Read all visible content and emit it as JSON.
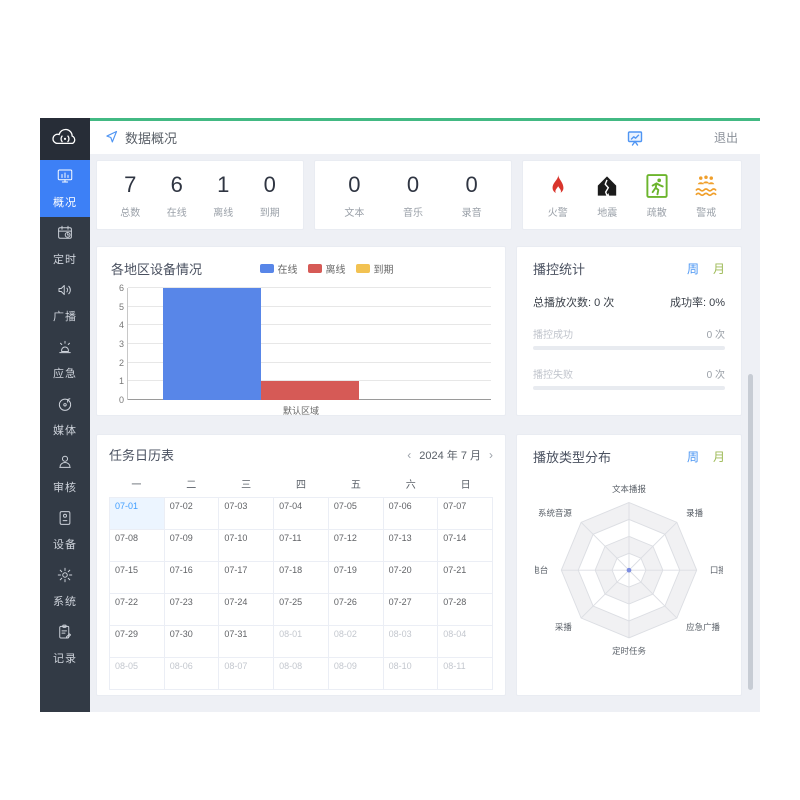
{
  "app": {
    "breadcrumb": "数据概况",
    "logout_label": "退出"
  },
  "colors": {
    "accent_green": "#42b983",
    "active_blue": "#3d80f6",
    "week_blue": "#4b96f3",
    "month_green": "#9dba56",
    "today_blue": "#409eff"
  },
  "sidebar": {
    "items": [
      {
        "label": "概况",
        "icon": "overview",
        "active": true
      },
      {
        "label": "定时",
        "icon": "timer",
        "active": false
      },
      {
        "label": "广播",
        "icon": "broadcast",
        "active": false
      },
      {
        "label": "应急",
        "icon": "emergency",
        "active": false
      },
      {
        "label": "媒体",
        "icon": "media",
        "active": false
      },
      {
        "label": "审核",
        "icon": "audit",
        "active": false
      },
      {
        "label": "设备",
        "icon": "device",
        "active": false
      },
      {
        "label": "系统",
        "icon": "system",
        "active": false
      },
      {
        "label": "记录",
        "icon": "records",
        "active": false
      }
    ]
  },
  "device_stats": [
    {
      "value": "7",
      "label": "总数"
    },
    {
      "value": "6",
      "label": "在线"
    },
    {
      "value": "1",
      "label": "离线"
    },
    {
      "value": "0",
      "label": "到期"
    }
  ],
  "media_stats": [
    {
      "value": "0",
      "label": "文本"
    },
    {
      "value": "0",
      "label": "音乐"
    },
    {
      "value": "0",
      "label": "录音"
    }
  ],
  "alerts": [
    {
      "label": "火警",
      "icon": "fire",
      "color": "#d9352c"
    },
    {
      "label": "地震",
      "icon": "earthquake",
      "color": "#1b1b1b"
    },
    {
      "label": "疏散",
      "icon": "evacuation",
      "color": "#6cb52d"
    },
    {
      "label": "警戒",
      "icon": "flood",
      "color": "#f09f2b"
    }
  ],
  "chart_data": [
    {
      "type": "bar",
      "title": "各地区设备情况",
      "categories": [
        "默认区域"
      ],
      "series": [
        {
          "name": "在线",
          "color": "#5886e8",
          "values": [
            6
          ]
        },
        {
          "name": "离线",
          "color": "#d65a56",
          "values": [
            1
          ]
        },
        {
          "name": "到期",
          "color": "#f2c252",
          "values": [
            0
          ]
        }
      ],
      "ylim": [
        0,
        6
      ],
      "yticks": [
        0,
        1,
        2,
        3,
        4,
        5,
        6
      ],
      "grid": true,
      "legend_position": "top"
    },
    {
      "type": "radar",
      "title": "播放类型分布",
      "axes": [
        "文本播报",
        "录播",
        "口播",
        "应急广播",
        "定时任务",
        "采播",
        "FM电台",
        "系统音源"
      ],
      "series": [
        {
          "name": "当前",
          "values": [
            0,
            0,
            0,
            0,
            0,
            0,
            0,
            0
          ]
        }
      ],
      "rings": 4
    }
  ],
  "play_stats": {
    "title": "播控统计",
    "week_label": "周",
    "month_label": "月",
    "total_label": "总播放次数:  0 次",
    "rate_label": "成功率:  0%",
    "rows": [
      {
        "label": "播控成功",
        "value": "0 次",
        "percent": 0
      },
      {
        "label": "播控失败",
        "value": "0 次",
        "percent": 0
      }
    ]
  },
  "calendar": {
    "title": "任务日历表",
    "nav_label": "2024 年 7 月",
    "prev": "‹",
    "next": "›",
    "weekdays": [
      "一",
      "二",
      "三",
      "四",
      "五",
      "六",
      "日"
    ],
    "days": [
      {
        "d": "07-01",
        "state": "today"
      },
      {
        "d": "07-02",
        "state": "cur"
      },
      {
        "d": "07-03",
        "state": "cur"
      },
      {
        "d": "07-04",
        "state": "cur"
      },
      {
        "d": "07-05",
        "state": "cur"
      },
      {
        "d": "07-06",
        "state": "cur"
      },
      {
        "d": "07-07",
        "state": "cur"
      },
      {
        "d": "07-08",
        "state": "cur"
      },
      {
        "d": "07-09",
        "state": "cur"
      },
      {
        "d": "07-10",
        "state": "cur"
      },
      {
        "d": "07-11",
        "state": "cur"
      },
      {
        "d": "07-12",
        "state": "cur"
      },
      {
        "d": "07-13",
        "state": "cur"
      },
      {
        "d": "07-14",
        "state": "cur"
      },
      {
        "d": "07-15",
        "state": "cur"
      },
      {
        "d": "07-16",
        "state": "cur"
      },
      {
        "d": "07-17",
        "state": "cur"
      },
      {
        "d": "07-18",
        "state": "cur"
      },
      {
        "d": "07-19",
        "state": "cur"
      },
      {
        "d": "07-20",
        "state": "cur"
      },
      {
        "d": "07-21",
        "state": "cur"
      },
      {
        "d": "07-22",
        "state": "cur"
      },
      {
        "d": "07-23",
        "state": "cur"
      },
      {
        "d": "07-24",
        "state": "cur"
      },
      {
        "d": "07-25",
        "state": "cur"
      },
      {
        "d": "07-26",
        "state": "cur"
      },
      {
        "d": "07-27",
        "state": "cur"
      },
      {
        "d": "07-28",
        "state": "cur"
      },
      {
        "d": "07-29",
        "state": "cur"
      },
      {
        "d": "07-30",
        "state": "cur"
      },
      {
        "d": "07-31",
        "state": "cur"
      },
      {
        "d": "08-01",
        "state": "other"
      },
      {
        "d": "08-02",
        "state": "other"
      },
      {
        "d": "08-03",
        "state": "other"
      },
      {
        "d": "08-04",
        "state": "other"
      },
      {
        "d": "08-05",
        "state": "other"
      },
      {
        "d": "08-06",
        "state": "other"
      },
      {
        "d": "08-07",
        "state": "other"
      },
      {
        "d": "08-08",
        "state": "other"
      },
      {
        "d": "08-09",
        "state": "other"
      },
      {
        "d": "08-10",
        "state": "other"
      },
      {
        "d": "08-11",
        "state": "other"
      }
    ]
  },
  "radar_panel": {
    "title": "播放类型分布",
    "week_label": "周",
    "month_label": "月"
  }
}
